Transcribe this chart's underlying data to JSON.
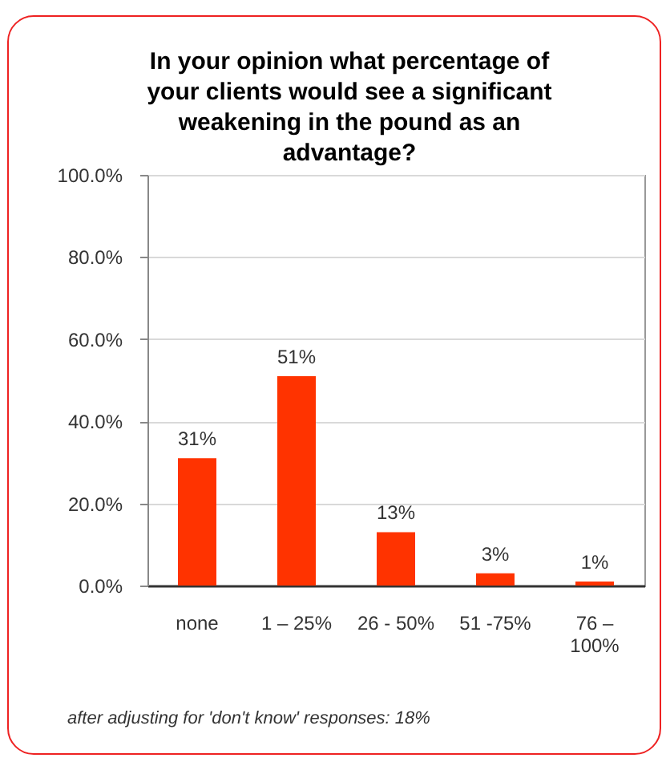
{
  "chart_data": {
    "type": "bar",
    "title": "In your opinion what percentage of your clients would see a significant weakening in the pound as an advantage?",
    "categories": [
      "none",
      "1 – 25%",
      "26 - 50%",
      "51 -75%",
      "76 – 100%"
    ],
    "values": [
      31,
      51,
      13,
      3,
      1
    ],
    "color": "#ff3300",
    "value_labels": [
      "31%",
      "51%",
      "13%",
      "3%",
      "1%"
    ],
    "ylim": [
      0,
      100
    ],
    "yticks": [
      {
        "value": 0,
        "label": "0.0%"
      },
      {
        "value": 20,
        "label": "20.0%"
      },
      {
        "value": 40,
        "label": "40.0%"
      },
      {
        "value": 60,
        "label": "60.0%"
      },
      {
        "value": 80,
        "label": "80.0%"
      },
      {
        "value": 100,
        "label": "100.0%"
      }
    ],
    "grid": "y",
    "annotations": [
      "after adjusting for 'don't know' responses: 18%"
    ]
  }
}
